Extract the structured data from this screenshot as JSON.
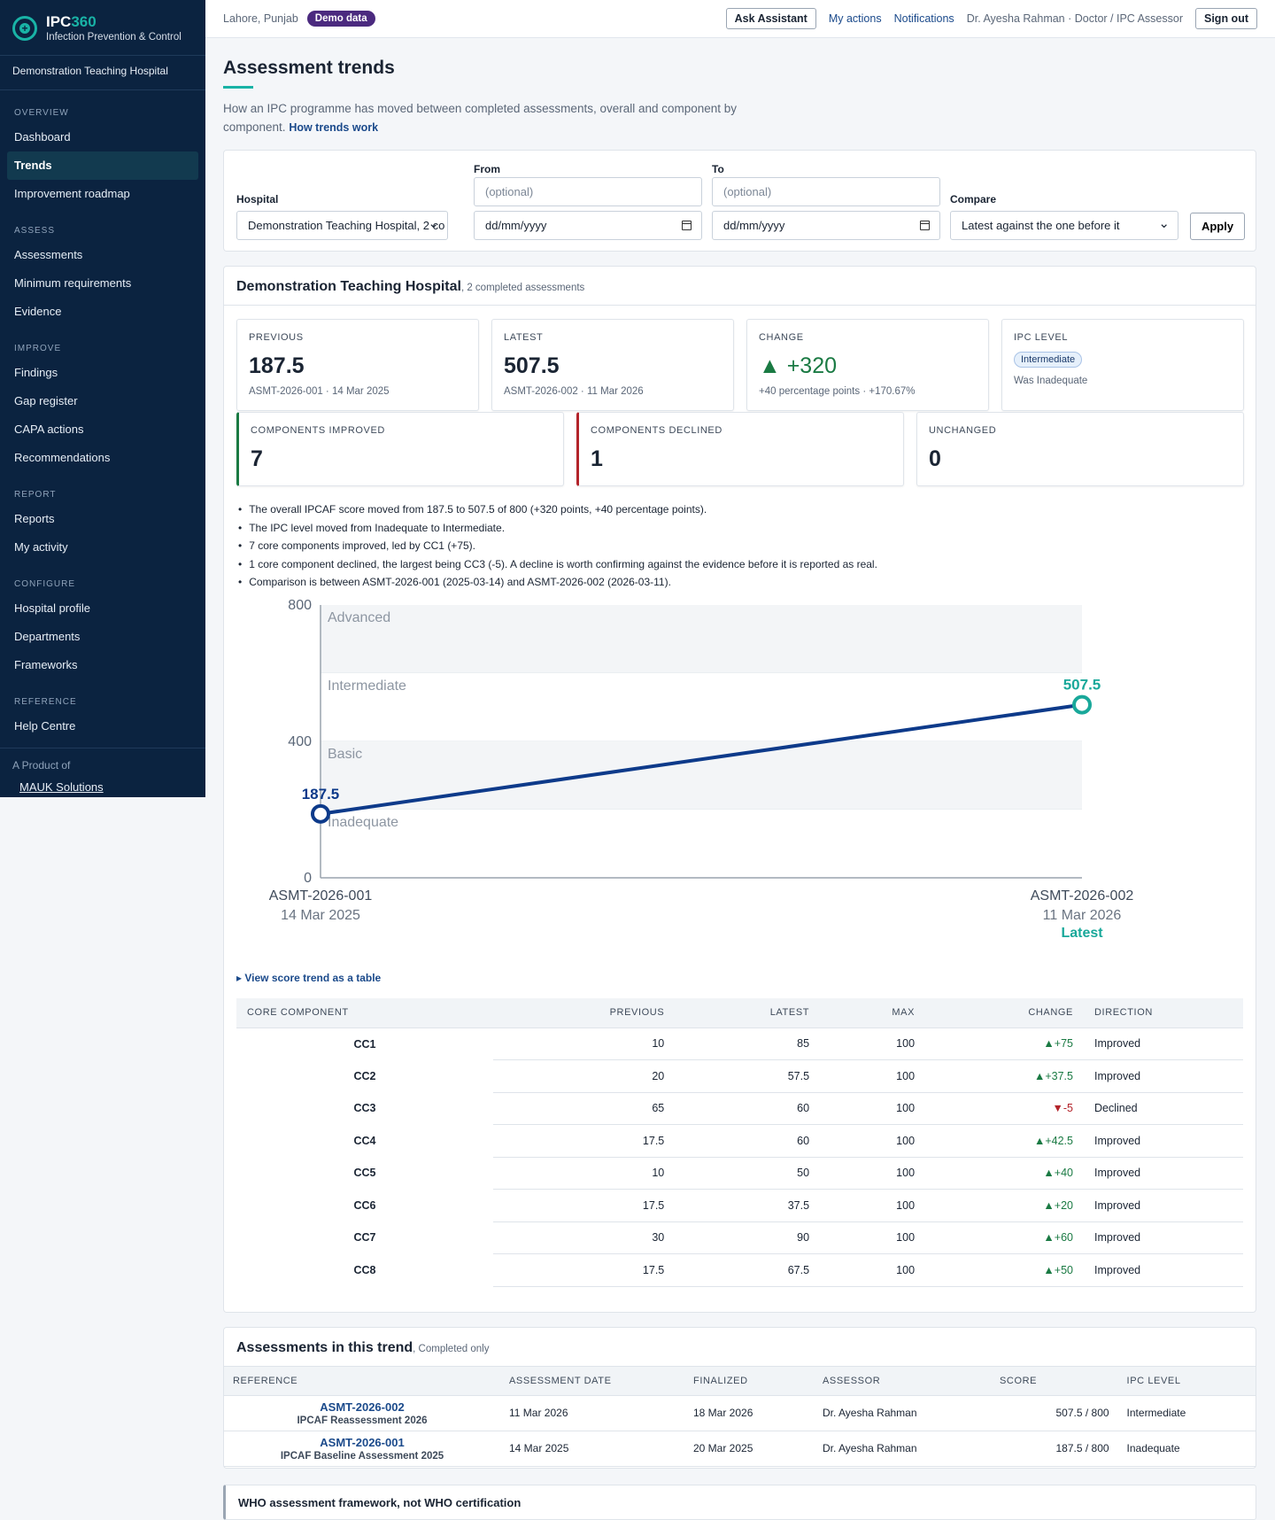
{
  "app": {
    "name_primary": "IPC",
    "name_accent": "360",
    "tagline": "Infection Prevention & Control",
    "hospital": "Demonstration Teaching Hospital"
  },
  "sidebar": {
    "sections": [
      {
        "title": "OVERVIEW",
        "items": [
          "Dashboard",
          "Trends",
          "Improvement roadmap"
        ]
      },
      {
        "title": "ASSESS",
        "items": [
          "Assessments",
          "Minimum requirements",
          "Evidence"
        ]
      },
      {
        "title": "IMPROVE",
        "items": [
          "Findings",
          "Gap register",
          "CAPA actions",
          "Recommendations"
        ]
      },
      {
        "title": "REPORT",
        "items": [
          "Reports",
          "My activity"
        ]
      },
      {
        "title": "CONFIGURE",
        "items": [
          "Hospital profile",
          "Departments",
          "Frameworks"
        ]
      },
      {
        "title": "REFERENCE",
        "items": [
          "Help Centre"
        ]
      }
    ],
    "active_item": "Trends",
    "footer_label": "A Product of",
    "footer_link": "MAUK Solutions"
  },
  "topbar": {
    "location": "Lahore, Punjab",
    "badge": "Demo data",
    "ask_assistant": "Ask Assistant",
    "my_actions": "My actions",
    "notifications": "Notifications",
    "user": "Dr. Ayesha Rahman · Doctor / IPC Assessor",
    "sign_out": "Sign out"
  },
  "page": {
    "title": "Assessment trends",
    "description": "How an IPC programme has moved between completed assessments, overall and component by component.",
    "help_link": "How trends work"
  },
  "filters": {
    "hospital_label": "Hospital",
    "hospital_value": "Demonstration Teaching Hospital, 2 co",
    "from_label": "From",
    "from_hint": "(optional)",
    "from_value": "dd/mm/yyyy",
    "to_label": "To",
    "to_hint": "(optional)",
    "to_value": "dd/mm/yyyy",
    "compare_label": "Compare",
    "compare_value": "Latest against the one before it",
    "apply": "Apply"
  },
  "hospital_card": {
    "name": "Demonstration Teaching Hospital",
    "meta": ", 2 completed assessments",
    "stats": {
      "previous": {
        "label": "PREVIOUS",
        "value": "187.5",
        "sub": "ASMT-2026-001 · 14 Mar 2025"
      },
      "latest": {
        "label": "LATEST",
        "value": "507.5",
        "sub": "ASMT-2026-002 · 11 Mar 2026"
      },
      "change": {
        "label": "CHANGE",
        "value": "▲ +320",
        "sub": "+40 percentage points · +170.67%"
      },
      "level": {
        "label": "IPC LEVEL",
        "badge": "Intermediate",
        "sub": "Was Inadequate"
      },
      "improved": {
        "label": "COMPONENTS IMPROVED",
        "value": "7"
      },
      "declined": {
        "label": "COMPONENTS DECLINED",
        "value": "1"
      },
      "unchanged": {
        "label": "UNCHANGED",
        "value": "0"
      }
    },
    "summary": [
      "The overall IPCAF score moved from 187.5 to 507.5 of 800 (+320 points, +40 percentage points).",
      "The IPC level moved from Inadequate to Intermediate.",
      "7 core components improved, led by CC1 (+75).",
      "1 core component declined, the largest being CC3 (-5). A decline is worth confirming against the evidence before it is reported as real.",
      "Comparison is between ASMT-2026-001 (2025-03-14) and ASMT-2026-002 (2026-03-11)."
    ],
    "table_toggle": "▸ View score trend as a table",
    "component_table": {
      "headers": [
        "CORE COMPONENT",
        "PREVIOUS",
        "LATEST",
        "MAX",
        "CHANGE",
        "DIRECTION"
      ],
      "rows": [
        {
          "cc": "CC1",
          "previous": "10",
          "latest": "85",
          "max": "100",
          "change": "▲+75",
          "direction": "Improved",
          "up": true
        },
        {
          "cc": "CC2",
          "previous": "20",
          "latest": "57.5",
          "max": "100",
          "change": "▲+37.5",
          "direction": "Improved",
          "up": true
        },
        {
          "cc": "CC3",
          "previous": "65",
          "latest": "60",
          "max": "100",
          "change": "▼-5",
          "direction": "Declined",
          "up": false
        },
        {
          "cc": "CC4",
          "previous": "17.5",
          "latest": "60",
          "max": "100",
          "change": "▲+42.5",
          "direction": "Improved",
          "up": true
        },
        {
          "cc": "CC5",
          "previous": "10",
          "latest": "50",
          "max": "100",
          "change": "▲+40",
          "direction": "Improved",
          "up": true
        },
        {
          "cc": "CC6",
          "previous": "17.5",
          "latest": "37.5",
          "max": "100",
          "change": "▲+20",
          "direction": "Improved",
          "up": true
        },
        {
          "cc": "CC7",
          "previous": "30",
          "latest": "90",
          "max": "100",
          "change": "▲+60",
          "direction": "Improved",
          "up": true
        },
        {
          "cc": "CC8",
          "previous": "17.5",
          "latest": "67.5",
          "max": "100",
          "change": "▲+50",
          "direction": "Improved",
          "up": true
        }
      ]
    }
  },
  "chart_data": {
    "type": "line",
    "x": [
      "ASMT-2026-001",
      "ASMT-2026-002"
    ],
    "x_dates": [
      "14 Mar 2025",
      "11 Mar 2026"
    ],
    "latest_tag": "Latest",
    "values": [
      187.5,
      507.5
    ],
    "value_labels": [
      "187.5",
      "507.5"
    ],
    "ylim": [
      0,
      800
    ],
    "yticks": [
      0,
      400,
      800
    ],
    "bands": [
      {
        "label": "Advanced",
        "from": 600,
        "to": 800
      },
      {
        "label": "Intermediate",
        "from": 400,
        "to": 600
      },
      {
        "label": "Basic",
        "from": 200,
        "to": 400
      },
      {
        "label": "Inadequate",
        "from": 0,
        "to": 200
      }
    ],
    "colors": {
      "previous": "#0d3a8a",
      "latest": "#19a89a",
      "line": "#0d3a8a"
    }
  },
  "assessments": {
    "title": "Assessments in this trend",
    "meta": ", Completed only",
    "headers": [
      "REFERENCE",
      "ASSESSMENT DATE",
      "FINALIZED",
      "ASSESSOR",
      "SCORE",
      "IPC LEVEL"
    ],
    "rows": [
      {
        "ref": "ASMT-2026-002",
        "name": "IPCAF Reassessment 2026",
        "date": "11 Mar 2026",
        "finalized": "18 Mar 2026",
        "assessor": "Dr. Ayesha Rahman",
        "score": "507.5 / 800",
        "level": "Intermediate"
      },
      {
        "ref": "ASMT-2026-001",
        "name": "IPCAF Baseline Assessment 2025",
        "date": "14 Mar 2025",
        "finalized": "20 Mar 2025",
        "assessor": "Dr. Ayesha Rahman",
        "score": "187.5 / 800",
        "level": "Inadequate"
      }
    ]
  },
  "notice": {
    "title": "WHO assessment framework, not WHO certification"
  }
}
